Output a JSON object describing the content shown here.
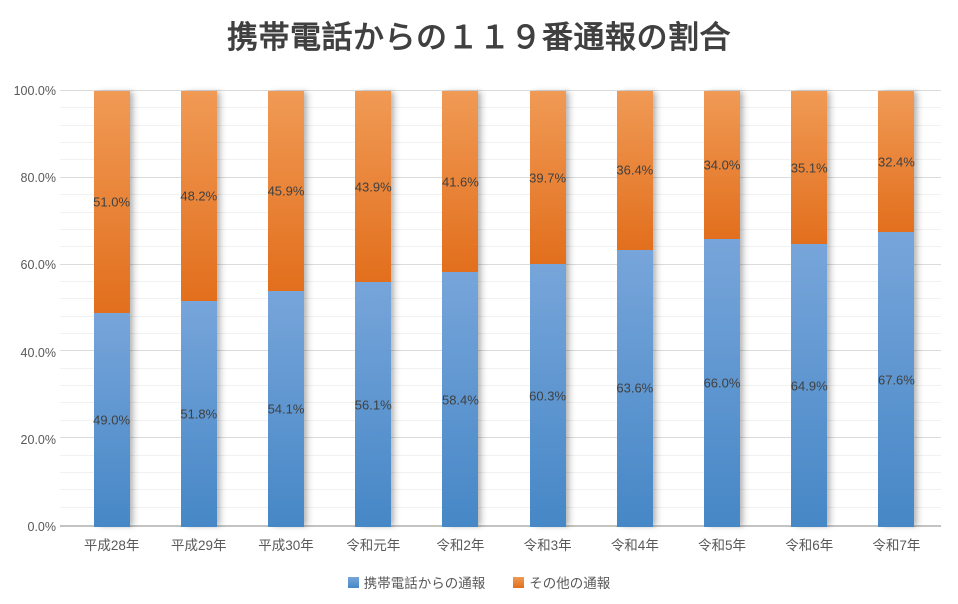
{
  "title": "携帯電話からの１１９番通報の割合",
  "colors": {
    "background": "#FFFFFF",
    "title_text": "#404040",
    "axis_text": "#595959",
    "data_label_text": "#404040",
    "gridline_major": "#DBDBDB",
    "gridline_minor": "#F1F1F1",
    "axis_line": "#C3C3C3",
    "series_blue": "#5B9BD5",
    "series_orange": "#ED7D31"
  },
  "chart_data": {
    "type": "bar",
    "subtype": "stacked-100-percent-column",
    "title": "携帯電話からの１１９番通報の割合",
    "categories": [
      "平成28年",
      "平成29年",
      "平成30年",
      "令和元年",
      "令和2年",
      "令和3年",
      "令和4年",
      "令和5年",
      "令和6年",
      "令和7年"
    ],
    "series": [
      {
        "name": "携帯電話からの通報",
        "color": "#5B9BD5",
        "color_top": "#77A5DA",
        "color_bottom": "#4687C6",
        "values": [
          49.0,
          51.8,
          54.1,
          56.1,
          58.4,
          60.3,
          63.6,
          66.0,
          64.9,
          67.6
        ],
        "labels": [
          "49.0%",
          "51.8%",
          "54.1%",
          "56.1%",
          "58.4%",
          "60.3%",
          "63.6%",
          "66.0%",
          "64.9%",
          "67.6%"
        ]
      },
      {
        "name": "その他の通報",
        "color": "#ED7D31",
        "color_top": "#F09A55",
        "color_bottom": "#E26F1D",
        "values": [
          51.0,
          48.2,
          45.9,
          43.9,
          41.6,
          39.7,
          36.4,
          34.0,
          35.1,
          32.4
        ],
        "labels": [
          "51.0%",
          "48.2%",
          "45.9%",
          "43.9%",
          "41.6%",
          "39.7%",
          "36.4%",
          "34.0%",
          "35.1%",
          "32.4%"
        ]
      }
    ],
    "xlabel": "",
    "ylabel": "",
    "ylim": [
      0,
      100
    ],
    "y_axis_tick_labels": [
      "0.0%",
      "20.0%",
      "40.0%",
      "60.0%",
      "80.0%",
      "100.0%"
    ],
    "y_major_step": 20,
    "y_minor_step": 4,
    "grid": true,
    "legend_position": "bottom"
  }
}
